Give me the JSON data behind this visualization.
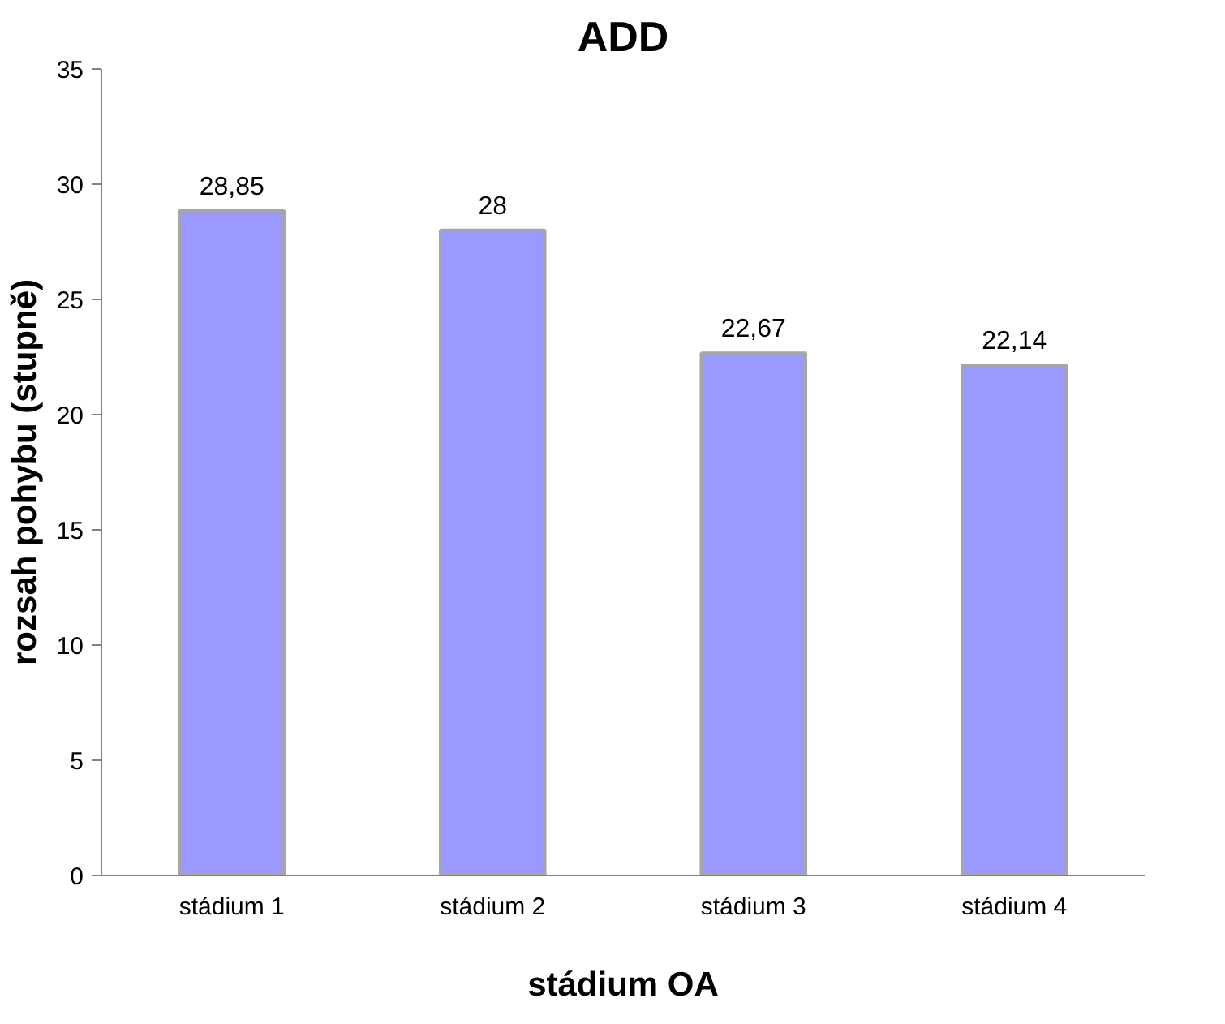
{
  "chart_data": {
    "type": "bar",
    "title": "ADD",
    "xlabel": "stádium OA",
    "ylabel": "rozsah pohybu (stupně)",
    "categories": [
      "stádium 1",
      "stádium 2",
      "stádium 3",
      "stádium 4"
    ],
    "values": [
      28.85,
      28,
      22.67,
      22.14
    ],
    "value_labels": [
      "28,85",
      "28",
      "22,67",
      "22,14"
    ],
    "color": "#9999ff",
    "ylim": [
      0,
      35
    ],
    "yticks": [
      0,
      5,
      10,
      15,
      20,
      25,
      30,
      35
    ],
    "grid": false
  }
}
